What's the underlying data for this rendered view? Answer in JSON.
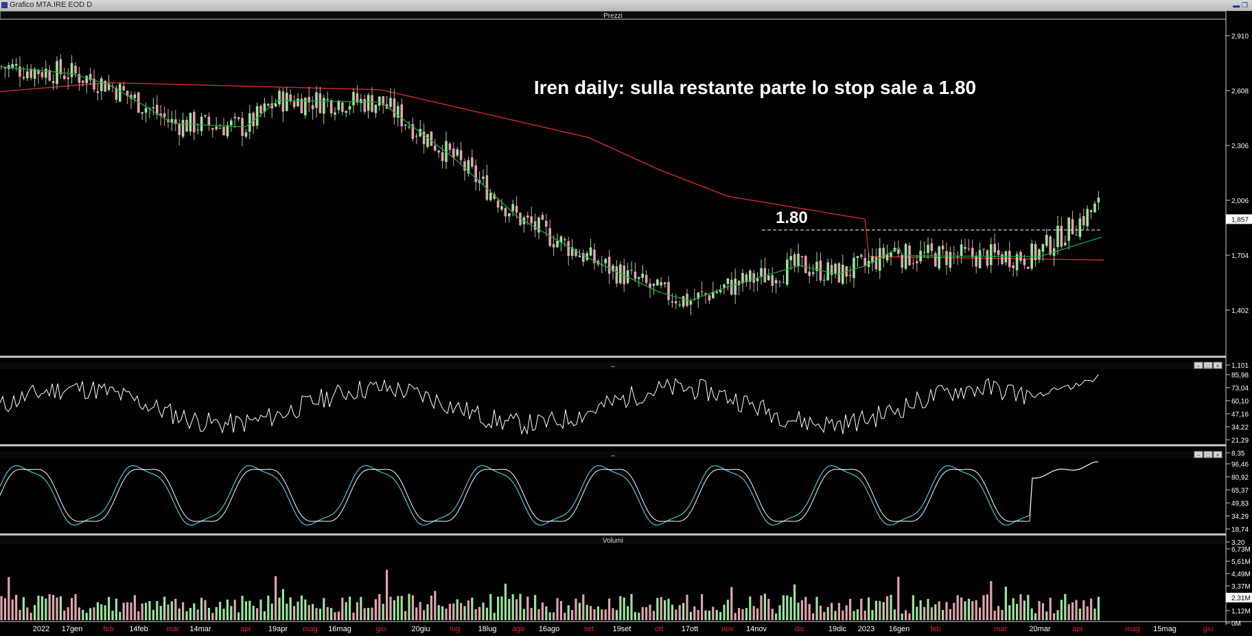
{
  "window": {
    "title": "Grafico MTA.IRE EOD D",
    "controls": "▬ ❐"
  },
  "panels": {
    "price": {
      "title": "Prezzi"
    },
    "osc1": {
      "title": "–"
    },
    "osc2": {
      "title": "–"
    },
    "volume": {
      "title": "Volumi"
    }
  },
  "panel_buttons": [
    "–",
    "□",
    "×"
  ],
  "colors": {
    "background": "#000000",
    "candle_up": "#9be39b",
    "candle_down": "#e0a3b0",
    "ma_long": "#d42a2a",
    "ma_short": "#1fae3a",
    "stoch_k": "#ffffff",
    "stoch_d": "#4fc6d8",
    "grid_sep": "#c8ccd4"
  },
  "chart_data": [
    {
      "type": "candlestick",
      "panel": "price",
      "title": "Iren daily: sulla restante parte lo stop sale a 1.80",
      "yticks": [
        "2,910",
        "2,608",
        "2,306",
        "2,006",
        "1,704",
        "1,402",
        "1,101"
      ],
      "ylim": [
        1.101,
        2.91
      ],
      "last_value": "1,857",
      "annotations": [
        {
          "text": "1.80",
          "y": 1.8,
          "style": "dashed-line",
          "from": "14nov",
          "to": "apr"
        }
      ],
      "series": [
        {
          "type": "line",
          "color": "#d42a2a",
          "x": [
            "2022",
            "feb",
            "giu",
            "set",
            "ott",
            "nov",
            "2023",
            "mar",
            "apr"
          ],
          "y": [
            2.58,
            2.63,
            2.59,
            2.32,
            2.14,
            1.99,
            1.86,
            1.71,
            1.63
          ]
        },
        {
          "type": "line",
          "color": "#1fae3a",
          "x": [
            "2022",
            "17gen",
            "feb",
            "14feb",
            "mar",
            "apr",
            "19apr",
            "giu",
            "luglio",
            "ago",
            "set",
            "ott",
            "17ott",
            "nov",
            "dic",
            "19dic",
            "2023",
            "16gen",
            "feb",
            "mar",
            "20mar",
            "apr"
          ],
          "y": [
            2.72,
            2.68,
            2.62,
            2.52,
            2.4,
            2.38,
            2.53,
            2.52,
            2.2,
            1.87,
            1.64,
            1.45,
            1.4,
            1.48,
            1.6,
            1.55,
            1.6,
            1.7,
            1.72,
            1.68,
            1.65,
            1.76
          ]
        }
      ]
    },
    {
      "type": "line",
      "panel": "osc1",
      "yticks": [
        "85,98",
        "73,04",
        "60,10",
        "47,16",
        "34,22",
        "21,29",
        "8,35"
      ],
      "ylim": [
        8.35,
        85.98
      ]
    },
    {
      "type": "line",
      "panel": "osc2",
      "series_colors": [
        "#ffffff",
        "#4fc6d8"
      ],
      "yticks": [
        "96,46",
        "80,92",
        "65,37",
        "49,83",
        "34,29",
        "18,74",
        "3,20"
      ],
      "ylim": [
        3.2,
        96.46
      ]
    },
    {
      "type": "bar",
      "panel": "volume",
      "yticks": [
        "6,73M",
        "5,61M",
        "4,49M",
        "3,37M",
        "2,31M",
        "1,12M",
        "0M"
      ],
      "ylim": [
        0,
        6.73
      ],
      "last_value": "2,31M"
    }
  ],
  "xaxis": [
    {
      "label": "2022",
      "red": false
    },
    {
      "label": "17gen",
      "red": false
    },
    {
      "label": "feb",
      "red": true
    },
    {
      "label": "14feb",
      "red": false
    },
    {
      "label": "mar",
      "red": true
    },
    {
      "label": "14mar",
      "red": false
    },
    {
      "label": "apr",
      "red": true
    },
    {
      "label": "19apr",
      "red": false
    },
    {
      "label": "mag",
      "red": true
    },
    {
      "label": "16mag",
      "red": false
    },
    {
      "label": "giu",
      "red": true
    },
    {
      "label": "20giu",
      "red": false
    },
    {
      "label": "lug",
      "red": true
    },
    {
      "label": "18lug",
      "red": false
    },
    {
      "label": "ago",
      "red": true
    },
    {
      "label": "16ago",
      "red": false
    },
    {
      "label": "set",
      "red": true
    },
    {
      "label": "19set",
      "red": false
    },
    {
      "label": "ott",
      "red": true
    },
    {
      "label": "17ott",
      "red": false
    },
    {
      "label": "nov",
      "red": true
    },
    {
      "label": "14nov",
      "red": false
    },
    {
      "label": "dic",
      "red": true
    },
    {
      "label": "19dic",
      "red": false
    },
    {
      "label": "2023",
      "red": false
    },
    {
      "label": "16gen",
      "red": false
    },
    {
      "label": "feb",
      "red": true
    },
    {
      "label": "mar",
      "red": true
    },
    {
      "label": "20mar",
      "red": false
    },
    {
      "label": "apr",
      "red": true
    },
    {
      "label": "mag",
      "red": true
    },
    {
      "label": "15mag",
      "red": false
    },
    {
      "label": "giu",
      "red": true
    }
  ]
}
